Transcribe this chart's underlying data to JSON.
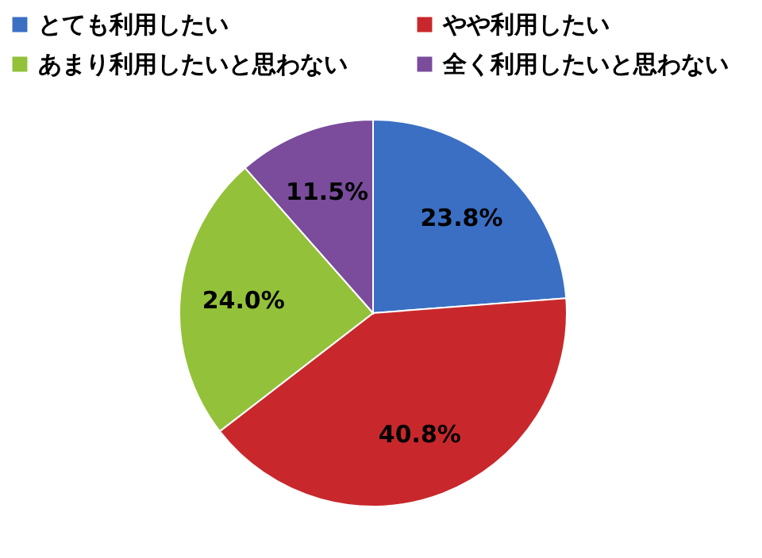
{
  "chart_data": {
    "type": "pie",
    "categories": [
      "とても利用したい",
      "やや利用したい",
      "あまり利用したいと思わない",
      "全く利用したいと思わない"
    ],
    "values": [
      23.8,
      40.8,
      24.0,
      11.5
    ],
    "colors": [
      "#3a6fc4",
      "#c8282c",
      "#93c13a",
      "#7a4c9b"
    ],
    "value_labels": [
      "23.8%",
      "40.8%",
      "24.0%",
      "11.5%"
    ],
    "legend": "top"
  }
}
